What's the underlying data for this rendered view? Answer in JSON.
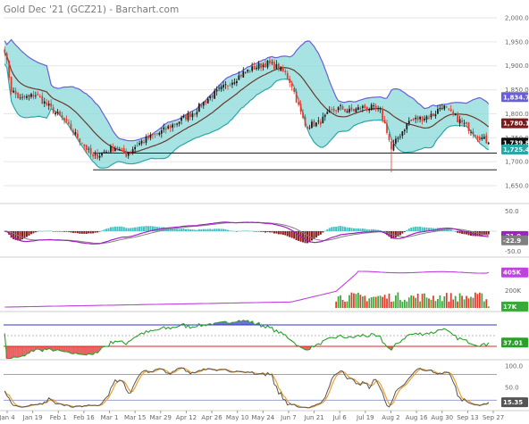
{
  "chart_data": {
    "type": "candlestick",
    "title": "Gold Dec '21 (GCZ21) - Barchart.com",
    "colors": {
      "up": "#1a1a1a",
      "down": "#e23a2a",
      "bollinger_fill": "#8ad9d9",
      "bollinger_upper": "#6a5fd6",
      "bollinger_lower": "#2aa8a8",
      "sma": "#6b3a2a",
      "macd_line": "#a020c0",
      "macd_signal": "#808080",
      "hist_pos": "#40c0c0",
      "hist_neg": "#8b1a1a",
      "open_interest": "#c040e0",
      "volume_up": "#3aa83a",
      "volume_down": "#e23a2a",
      "rsi": "#2aa02a",
      "rsi_over": "#3030d0",
      "rsi_under": "#e02020",
      "stoch_k": "#555555",
      "stoch_d": "#f0a030"
    },
    "x_axis_labels": [
      "Jan 4",
      "Jan 19",
      "Feb 1",
      "Feb 16",
      "Mar 1",
      "Mar 15",
      "Mar 29",
      "Apr 12",
      "Apr 26",
      "May 10",
      "May 24",
      "Jun 7",
      "Jun 21",
      "Jul 6",
      "Jul 19",
      "Aug 2",
      "Aug 16",
      "Aug 30",
      "Sep 13",
      "Sep 27"
    ],
    "price_panel": {
      "ylim": [
        1650,
        2000
      ],
      "ticks": [
        "2,000.0",
        "1,950.0",
        "1,900.0",
        "1,850.0",
        "1,800.0",
        "1,750.0",
        "1,700.0",
        "1,650.0"
      ],
      "tick_values": [
        2000,
        1950,
        1900,
        1850,
        1800,
        1750,
        1700,
        1650
      ],
      "close_keyframes": [
        [
          0,
          1935
        ],
        [
          3,
          1850
        ],
        [
          7,
          1830
        ],
        [
          14,
          1840
        ],
        [
          20,
          1815
        ],
        [
          27,
          1785
        ],
        [
          35,
          1740
        ],
        [
          40,
          1708
        ],
        [
          45,
          1720
        ],
        [
          50,
          1730
        ],
        [
          55,
          1715
        ],
        [
          58,
          1728
        ],
        [
          62,
          1742
        ],
        [
          70,
          1760
        ],
        [
          78,
          1782
        ],
        [
          86,
          1805
        ],
        [
          92,
          1832
        ],
        [
          100,
          1858
        ],
        [
          108,
          1885
        ],
        [
          115,
          1900
        ],
        [
          119,
          1905
        ],
        [
          124,
          1896
        ],
        [
          127,
          1884
        ],
        [
          130,
          1860
        ],
        [
          133,
          1815
        ],
        [
          136,
          1775
        ],
        [
          142,
          1780
        ],
        [
          148,
          1805
        ],
        [
          152,
          1812
        ],
        [
          156,
          1805
        ],
        [
          162,
          1813
        ],
        [
          166,
          1812
        ],
        [
          170,
          1805
        ],
        [
          173,
          1765
        ],
        [
          175,
          1725
        ],
        [
          178,
          1750
        ],
        [
          183,
          1785
        ],
        [
          188,
          1790
        ],
        [
          194,
          1798
        ],
        [
          198,
          1818
        ],
        [
          202,
          1800
        ],
        [
          206,
          1785
        ],
        [
          210,
          1770
        ],
        [
          214,
          1755
        ],
        [
          219,
          1739.8
        ]
      ],
      "support_lines": [
        1718,
        1683
      ],
      "badges": [
        {
          "label": "1,834.7",
          "value": 1834.7,
          "color": "#6a5fd6"
        },
        {
          "label": "1,780.1",
          "value": 1780.1,
          "color": "#7a1a1a"
        },
        {
          "label": "1,739.8",
          "value": 1739.8,
          "color": "#111111"
        },
        {
          "label": "1,725.4",
          "value": 1725.4,
          "color": "#2aa8a8"
        }
      ]
    },
    "macd_panel": {
      "ylim": [
        -60,
        60
      ],
      "ticks": [
        "50.0",
        "-50.0"
      ],
      "tick_values": [
        50,
        -50
      ],
      "badges": [
        {
          "label": "-21.9",
          "value": -12,
          "color": "#a020c0"
        },
        {
          "label": "-22.9",
          "value": -22.9,
          "color": "#808080"
        }
      ]
    },
    "volume_panel": {
      "ylim": [
        0,
        560
      ],
      "units": "K",
      "ticks": [
        "200K"
      ],
      "tick_values": [
        200
      ],
      "badges": [
        {
          "label": "405K",
          "value": 405,
          "color": "#c040e0"
        },
        {
          "label": "17K",
          "value": 17,
          "color": "#3aa83a"
        }
      ]
    },
    "rsi_panel": {
      "ylim": [
        10,
        90
      ],
      "ticks": [],
      "levels": [
        70,
        50,
        30
      ],
      "badges": [
        {
          "label": "37.01",
          "value": 37.01,
          "color": "#2aa02a"
        }
      ]
    },
    "stoch_panel": {
      "ylim": [
        0,
        110
      ],
      "ticks": [
        "100.0",
        "50.0"
      ],
      "tick_values": [
        100,
        50
      ],
      "levels": [
        80,
        20
      ],
      "badges": [
        {
          "label": "15.35",
          "value": 15.35,
          "color": "#555555"
        }
      ]
    }
  }
}
